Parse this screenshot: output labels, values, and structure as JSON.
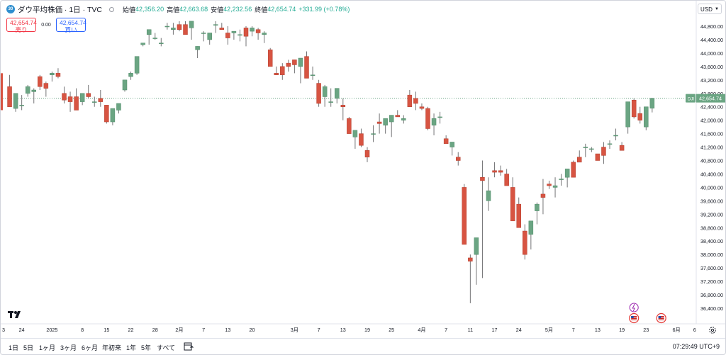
{
  "header": {
    "symbol_title": "ダウ平均株価 · 1日 · TVC",
    "logo_text": "30",
    "ohlc": [
      {
        "label": "始値",
        "value": "42,356.20"
      },
      {
        "label": "高値",
        "value": "42,663.68"
      },
      {
        "label": "安値",
        "value": "42,232.56"
      },
      {
        "label": "終値",
        "value": "42,654.74"
      }
    ],
    "change": "+331.99 (+0.78%)"
  },
  "quote": {
    "sell_price": "42,654.74",
    "sell_label": "売り",
    "spread": "0.00",
    "buy_price": "42,654.74",
    "buy_label": "買い"
  },
  "currency": "USD",
  "price_tag": {
    "symbol": "DJI",
    "value": "42,654.74"
  },
  "periods": [
    "1日",
    "5日",
    "1ヶ月",
    "3ヶ月",
    "6ヶ月",
    "年初来",
    "1年",
    "5年",
    "すべて"
  ],
  "clock": "07:29:49 UTC+9",
  "colors": {
    "up": "#6ba583",
    "down": "#d75442",
    "wick": "#737375",
    "grid": "#f0f3fa"
  },
  "chart_data": {
    "type": "candlestick",
    "title": "ダウ平均株価 · 1日 · TVC",
    "ylim": [
      36200,
      45200
    ],
    "y_ticks": [
      "44,800.00",
      "44,400.00",
      "44,000.00",
      "43,600.00",
      "43,200.00",
      "42,800.00",
      "42,400.00",
      "42,000.00",
      "41,600.00",
      "41,200.00",
      "40,800.00",
      "40,400.00",
      "40,000.00",
      "39,600.00",
      "39,200.00",
      "38,800.00",
      "38,400.00",
      "38,000.00",
      "37,600.00",
      "37,200.00",
      "36,800.00",
      "36,400.00"
    ],
    "x_tick_labels": [
      {
        "i": 0,
        "t": "3"
      },
      {
        "i": 3,
        "t": "24"
      },
      {
        "i": 8,
        "t": "2025"
      },
      {
        "i": 13,
        "t": "8"
      },
      {
        "i": 17,
        "t": "15"
      },
      {
        "i": 21,
        "t": "22"
      },
      {
        "i": 25,
        "t": "28"
      },
      {
        "i": 29,
        "t": "2月"
      },
      {
        "i": 33,
        "t": "7"
      },
      {
        "i": 37,
        "t": "13"
      },
      {
        "i": 41,
        "t": "20"
      },
      {
        "i": 48,
        "t": "3月"
      },
      {
        "i": 52,
        "t": "7"
      },
      {
        "i": 56,
        "t": "13"
      },
      {
        "i": 60,
        "t": "19"
      },
      {
        "i": 64,
        "t": "25"
      },
      {
        "i": 69,
        "t": "4月"
      },
      {
        "i": 73,
        "t": "7"
      },
      {
        "i": 77,
        "t": "11"
      },
      {
        "i": 81,
        "t": "17"
      },
      {
        "i": 85,
        "t": "24"
      },
      {
        "i": 90,
        "t": "5月"
      },
      {
        "i": 94,
        "t": "7"
      },
      {
        "i": 98,
        "t": "13"
      },
      {
        "i": 102,
        "t": "19"
      },
      {
        "i": 106,
        "t": "23"
      },
      {
        "i": 111,
        "t": "6月"
      },
      {
        "i": 114,
        "t": "6"
      }
    ],
    "candles": [
      [
        null,
        null,
        null,
        null
      ],
      [
        43000,
        43350,
        42400,
        42400
      ],
      [
        42350,
        42800,
        42250,
        42800
      ],
      [
        42450,
        42750,
        42300,
        42450
      ],
      [
        42800,
        43050,
        42700,
        43000
      ],
      [
        42850,
        42950,
        42500,
        42900
      ],
      [
        43300,
        43350,
        42900,
        43000
      ],
      [
        43100,
        43150,
        42700,
        42950
      ],
      [
        43350,
        43450,
        43150,
        43400
      ],
      [
        43400,
        43550,
        43250,
        43300
      ],
      [
        42800,
        43000,
        42500,
        42600
      ],
      [
        42700,
        42850,
        42250,
        42550
      ],
      [
        42700,
        42950,
        42350,
        42300
      ],
      [
        42550,
        42800,
        42450,
        42800
      ],
      [
        42800,
        43050,
        42650,
        42700
      ],
      [
        42550,
        42700,
        42400,
        42550
      ],
      [
        42650,
        42900,
        42400,
        42550
      ],
      [
        42450,
        42450,
        41900,
        41950
      ],
      [
        41950,
        42050,
        41850,
        42350
      ],
      [
        42300,
        42500,
        42200,
        42500
      ],
      [
        42900,
        43200,
        42850,
        43200
      ],
      [
        43300,
        43450,
        43200,
        43400
      ],
      [
        43400,
        43800,
        43350,
        43900
      ],
      [
        44250,
        44300,
        44200,
        44300
      ],
      [
        44550,
        44700,
        44250,
        44700
      ],
      [
        44450,
        44600,
        44400,
        44450
      ],
      [
        44300,
        44450,
        44200,
        44300
      ],
      [
        44800,
        44900,
        44700,
        44800
      ],
      [
        44700,
        44900,
        44550,
        44750
      ],
      [
        44850,
        44950,
        44650,
        44700
      ],
      [
        44850,
        44950,
        44800,
        44550
      ],
      [
        44750,
        44750,
        44400,
        44950
      ],
      [
        44100,
        44200,
        43850,
        44200
      ],
      [
        44600,
        44650,
        44350,
        44600
      ],
      [
        44400,
        44550,
        44250,
        44600
      ],
      [
        44850,
        44950,
        44600,
        44850
      ],
      [
        44750,
        44900,
        44700,
        44700
      ],
      [
        44600,
        44800,
        44250,
        44450
      ],
      [
        44600,
        44650,
        44400,
        44650
      ],
      [
        44550,
        44700,
        44350,
        44550
      ],
      [
        44750,
        44800,
        44200,
        44500
      ],
      [
        44650,
        44800,
        44500,
        44750
      ],
      [
        44700,
        44750,
        44400,
        44600
      ],
      [
        44550,
        44650,
        44300,
        44600
      ],
      [
        44100,
        44150,
        43800,
        43600
      ],
      [
        43400,
        43600,
        43350,
        43350
      ],
      [
        43600,
        43700,
        43200,
        43350
      ],
      [
        43700,
        43800,
        43450,
        43600
      ],
      [
        43800,
        43800,
        43400,
        43650
      ],
      [
        43600,
        43650,
        43100,
        43850
      ],
      [
        43900,
        44050,
        43800,
        43250
      ],
      [
        43350,
        43600,
        43200,
        43350
      ],
      [
        43100,
        43200,
        42400,
        42500
      ],
      [
        42700,
        43050,
        42400,
        43000
      ],
      [
        42550,
        42950,
        42400,
        42550
      ],
      [
        42650,
        42950,
        42500,
        42950
      ],
      [
        42450,
        42650,
        42000,
        42400
      ],
      [
        42050,
        42100,
        41800,
        41600
      ],
      [
        41500,
        41700,
        41150,
        41700
      ],
      [
        41600,
        41750,
        41200,
        41250
      ],
      [
        41100,
        41200,
        40750,
        40900
      ],
      [
        41600,
        41850,
        41350,
        41600
      ],
      [
        41950,
        42200,
        41600,
        41900
      ],
      [
        41850,
        42000,
        41600,
        42050
      ],
      [
        41950,
        42150,
        41500,
        42150
      ],
      [
        42150,
        42300,
        42100,
        42100
      ],
      [
        42000,
        42150,
        41900,
        42050
      ],
      [
        42750,
        42900,
        42400,
        42400
      ],
      [
        42650,
        42850,
        42300,
        42500
      ],
      [
        42400,
        42500,
        42300,
        42350
      ],
      [
        42350,
        42400,
        41700,
        41750
      ],
      [
        41850,
        42200,
        41550,
        42050
      ],
      [
        42100,
        42250,
        41900,
        42100
      ],
      [
        41450,
        41550,
        41350,
        41300
      ],
      [
        41200,
        41350,
        40950,
        41350
      ],
      [
        40900,
        41050,
        40650,
        40800
      ],
      [
        40000,
        40100,
        38300,
        38300
      ],
      [
        37900,
        38000,
        36550,
        37800
      ],
      [
        38000,
        38500,
        37100,
        38500
      ],
      [
        40300,
        40800,
        37300,
        40200
      ],
      [
        39600,
        40300,
        39300,
        39900
      ],
      [
        40500,
        40750,
        40300,
        40450
      ],
      [
        40500,
        40650,
        40350,
        40450
      ],
      [
        40400,
        40550,
        40250,
        40050
      ],
      [
        40000,
        40300,
        39200,
        39000
      ],
      [
        39500,
        39700,
        38900,
        38800
      ],
      [
        38700,
        38900,
        37850,
        38000
      ],
      [
        38600,
        39000,
        38150,
        39000
      ],
      [
        39300,
        39550,
        38900,
        39500
      ],
      [
        39800,
        40250,
        39200,
        39700
      ],
      [
        40100,
        40200,
        39950,
        40050
      ],
      [
        40000,
        40300,
        39700,
        40050
      ],
      [
        40250,
        40400,
        40050,
        40250
      ],
      [
        40300,
        40550,
        40000,
        40550
      ],
      [
        40750,
        40800,
        40350,
        40300
      ],
      [
        40900,
        41100,
        40800,
        40750
      ],
      [
        41200,
        41300,
        40900,
        41200
      ],
      [
        41150,
        41200,
        41050,
        41150
      ],
      [
        41000,
        41000,
        40800,
        40800
      ],
      [
        41200,
        41350,
        40700,
        40950
      ],
      [
        41300,
        41400,
        41150,
        41300
      ],
      [
        41550,
        41750,
        41400,
        41550
      ],
      [
        41250,
        41350,
        41100,
        41100
      ],
      [
        41800,
        42000,
        41600,
        42550
      ],
      [
        42600,
        42650,
        42050,
        42100
      ],
      [
        42200,
        42400,
        41900,
        42000
      ],
      [
        41800,
        42400,
        41700,
        42400
      ],
      [
        42356.2,
        42663.68,
        42232.56,
        42654.74
      ]
    ]
  }
}
